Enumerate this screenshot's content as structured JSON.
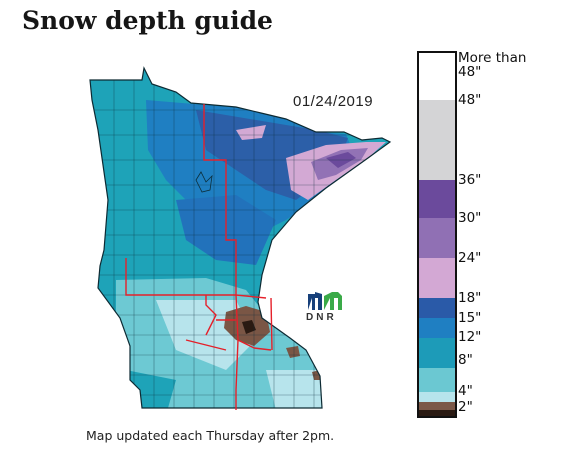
{
  "page": {
    "title": "Snow depth guide",
    "caption": "Map updated each Thursday after 2pm."
  },
  "map": {
    "region": "Minnesota",
    "date": "01/24/2019",
    "logo": {
      "name": "dnr-logo",
      "text": "DNR"
    }
  },
  "legend": {
    "labels": [
      {
        "id": "more-than-48a",
        "text": "More than"
      },
      {
        "id": "more-than-48b",
        "text": "48\""
      },
      {
        "id": "48",
        "text": "48\""
      },
      {
        "id": "36",
        "text": "36\""
      },
      {
        "id": "30",
        "text": "30\""
      },
      {
        "id": "24",
        "text": "24\""
      },
      {
        "id": "18",
        "text": "18\""
      },
      {
        "id": "15",
        "text": "15\""
      },
      {
        "id": "12",
        "text": "12\""
      },
      {
        "id": "8",
        "text": "8\""
      },
      {
        "id": "4",
        "text": "4\""
      },
      {
        "id": "2",
        "text": "2\""
      }
    ],
    "colors": {
      "more_than_48": "#ffffff",
      "36_48": "#d4d4d6",
      "30_36": "#6b4a9c",
      "24_30": "#9070b4",
      "18_24": "#d3a8d4",
      "15_18": "#2a5aa8",
      "12_15": "#1f7fc2",
      "8_12": "#1d9bb8",
      "4_8": "#6bc8d2",
      "2_4": "#b7e4ec",
      "1_2": "#7b5848",
      "0_1": "#2a1a12"
    }
  },
  "map_colors": {
    "north_teal": "#1ea3b8",
    "northeast_blue": "#2c5fa8",
    "arrowhead_purple": "#9272b5",
    "arrowhead_light_purple": "#d3a9d4",
    "central_blue": "#2272bb",
    "south_light": "#6dc9d3",
    "metro_brown": "#7a5645",
    "region_lines": "#e5202a"
  }
}
